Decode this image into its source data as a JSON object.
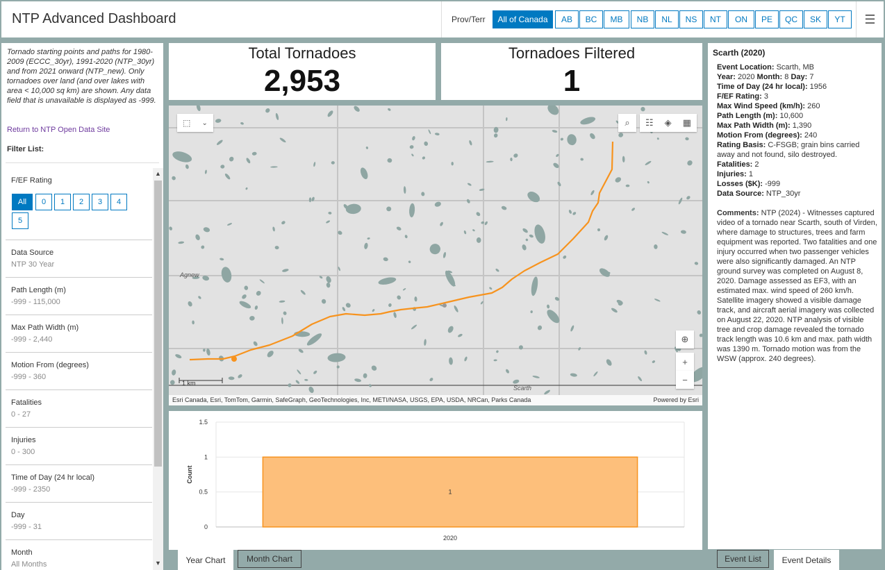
{
  "app": {
    "title": "NTP Advanced Dashboard",
    "menu_icon": "hamburger-icon"
  },
  "prov": {
    "label": "Prov/Terr",
    "options": [
      "All of Canada",
      "AB",
      "BC",
      "MB",
      "NB",
      "NL",
      "NS",
      "NT",
      "ON",
      "PE",
      "QC",
      "SK",
      "YT"
    ],
    "selected": "All of Canada"
  },
  "left": {
    "intro": "Tornado starting points and paths for 1980-2009 (ECCC_30yr), 1991-2020 (NTP_30yr) and from 2021 onward (NTP_new).  Only tornadoes over land (and over lakes with area < 10,000 sq km) are shown. Any data field that is unavailable is displayed as -999.",
    "return_link": "Return to NTP Open Data Site",
    "filter_list": "Filter List:",
    "rating_label": "F/EF Rating",
    "rating_options": [
      "All",
      "0",
      "1",
      "2",
      "3",
      "4",
      "5"
    ],
    "filters": [
      {
        "label": "Data Source",
        "value": "NTP 30 Year"
      },
      {
        "label": "Path Length (m)",
        "value": "-999 - 115,000"
      },
      {
        "label": "Max Path Width (m)",
        "value": "-999 - 2,440"
      },
      {
        "label": "Motion From (degrees)",
        "value": "-999 - 360"
      },
      {
        "label": "Fatalities",
        "value": "0 - 27"
      },
      {
        "label": "Injuries",
        "value": "0 - 300"
      },
      {
        "label": "Time of Day (24 hr local)",
        "value": "-999 - 2350"
      },
      {
        "label": "Day",
        "value": "-999 - 31"
      },
      {
        "label": "Month",
        "value": "All Months"
      }
    ]
  },
  "stats": {
    "total_title": "Total Tornadoes",
    "total_value": "2,953",
    "filtered_title": "Tornadoes Filtered",
    "filtered_value": "1"
  },
  "map": {
    "labels": {
      "agnew": "Agnew",
      "scarth": "Scarth"
    },
    "scale": "1 km",
    "attribution": "Esri Canada, Esri, TomTom, Garmin, SafeGraph, GeoTechnologies, Inc, METI/NASA, USGS, EPA, USDA, NRCan, Parks Canada",
    "powered": "Powered by Esri",
    "track_color": "#f7931e",
    "water_color": "#8fa6a3",
    "zoom_in": "+",
    "zoom_out": "−"
  },
  "chart_data": {
    "type": "bar",
    "categories": [
      "2020"
    ],
    "values": [
      1
    ],
    "data_labels": [
      "1"
    ],
    "ylabel": "Count",
    "ylim": [
      0,
      1.5
    ],
    "yticks": [
      "0",
      "0.5",
      "1",
      "1.5"
    ],
    "bar_color": "#fdbf7b",
    "bar_border": "#f7931e",
    "grid": true
  },
  "chart_tabs": [
    "Year Chart",
    "Month Chart"
  ],
  "active_chart_tab": "Year Chart",
  "details": {
    "title": "Scarth (2020)",
    "event_location_label": "Event Location:",
    "event_location": "Scarth, MB",
    "year_label": "Year:",
    "year": "2020",
    "month_label": "Month:",
    "month": "8",
    "day_label": "Day:",
    "day": "7",
    "time_label": "Time of Day (24 hr local):",
    "time": "1956",
    "rating_label": "F/EF Rating:",
    "rating": "3",
    "wind_label": "Max Wind Speed (km/h):",
    "wind": "260",
    "length_label": "Path Length (m):",
    "length": "10,600",
    "width_label": "Max Path Width (m):",
    "width": "1,390",
    "motion_label": "Motion From (degrees):",
    "motion": "240",
    "basis_label": "Rating Basis:",
    "basis": "C-FSGB; grain bins carried away and not found, silo destroyed.",
    "fatalities_label": "Fatalities:",
    "fatalities": "2",
    "injuries_label": "Injuries:",
    "injuries": "1",
    "losses_label": "Losses ($K):",
    "losses": "-999",
    "source_label": "Data Source:",
    "source": "NTP_30yr",
    "comments_label": "Comments:",
    "comments": "NTP (2024) - Witnesses captured video of a tornado near Scarth, south of Virden, where damage to structures, trees and farm equipment was reported. Two fatalities and one injury occurred when two passenger vehicles were also significantly damaged. An NTP ground survey was completed on August 8, 2020. Damage assessed as EF3, with an estimated max. wind speed of 260 km/h. Satellite imagery showed a visible damage track, and aircraft aerial imagery was collected on August 22, 2020. NTP analysis of visible tree and crop damage revealed the tornado track length was 10.6 km and max. path width was 1390 m. Tornado motion was from the WSW (approx. 240 degrees)."
  },
  "right_tabs": [
    "Event List",
    "Event Details"
  ],
  "active_right_tab": "Event Details"
}
